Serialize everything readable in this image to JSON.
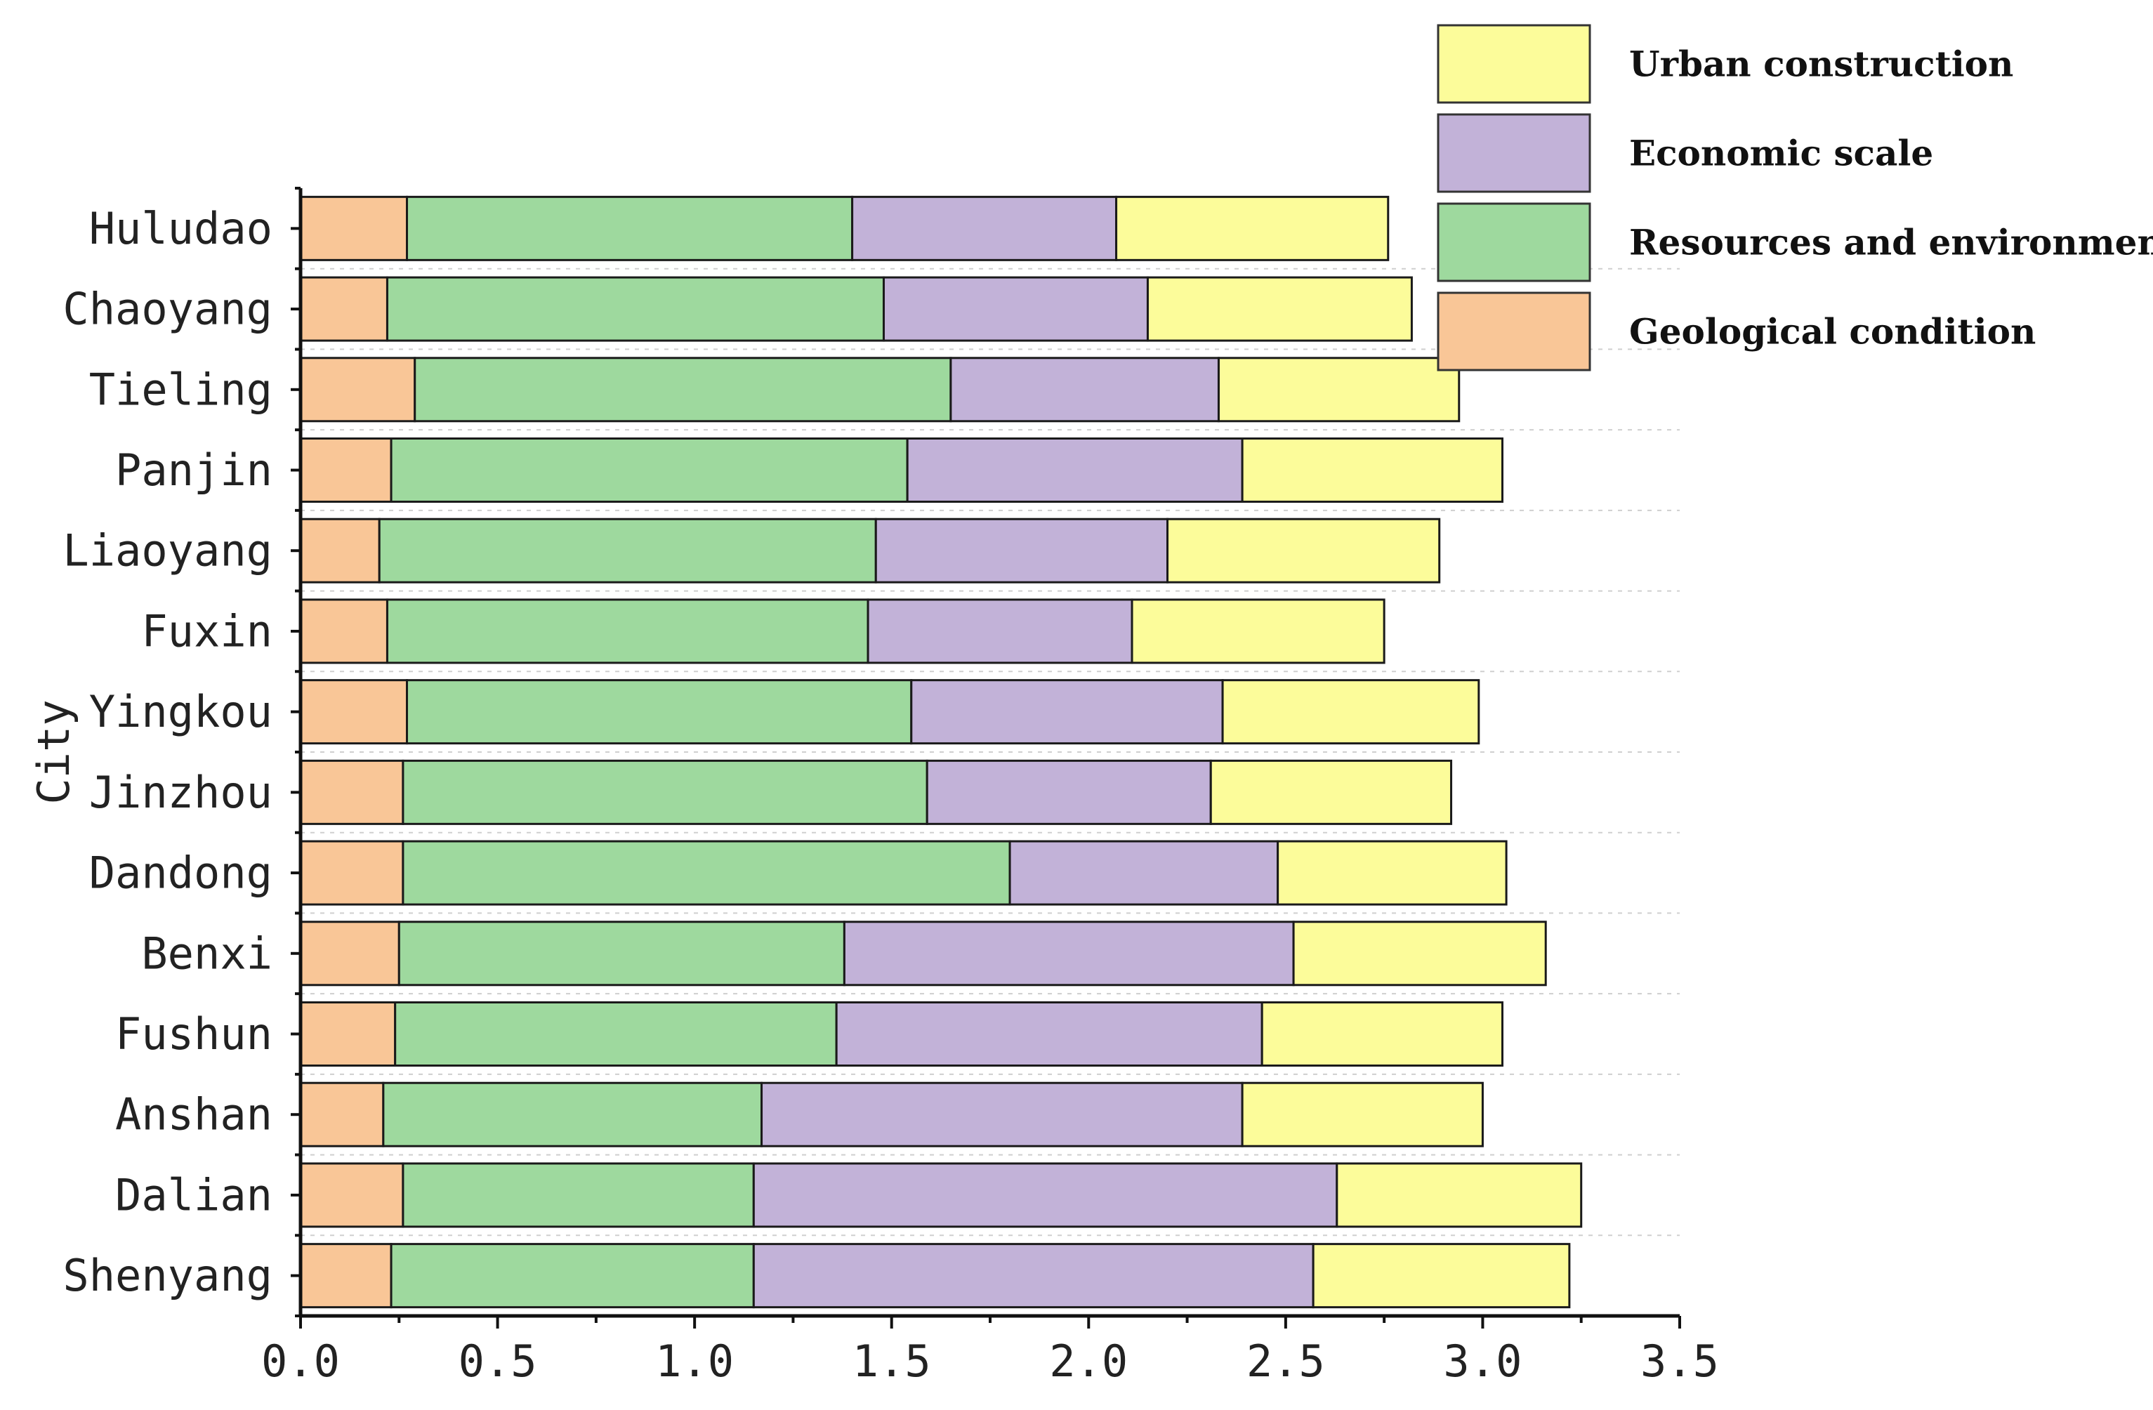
{
  "chart_data": {
    "type": "bar",
    "orientation": "horizontal",
    "stacked": true,
    "title": "",
    "xlabel": "",
    "ylabel": "City",
    "xlim": [
      0,
      3.5
    ],
    "xticks": [
      "0.0",
      "0.5",
      "1.0",
      "1.5",
      "2.0",
      "2.5",
      "3.0",
      "3.5"
    ],
    "grid": true,
    "legend_position": "top-right",
    "categories": [
      "Huludao",
      "Chaoyang",
      "Tieling",
      "Panjin",
      "Liaoyang",
      "Fuxin",
      "Yingkou",
      "Jinzhou",
      "Dandong",
      "Benxi",
      "Fushun",
      "Anshan",
      "Dalian",
      "Shenyang"
    ],
    "series": [
      {
        "name": "Geological condition",
        "color": "#f9c697",
        "values": [
          0.27,
          0.22,
          0.29,
          0.23,
          0.2,
          0.22,
          0.27,
          0.26,
          0.26,
          0.25,
          0.24,
          0.21,
          0.26,
          0.23
        ]
      },
      {
        "name": "Resources and environment",
        "color": "#9ed99e",
        "values": [
          1.13,
          1.26,
          1.36,
          1.31,
          1.26,
          1.22,
          1.28,
          1.33,
          1.54,
          1.13,
          1.12,
          0.96,
          0.89,
          0.92
        ]
      },
      {
        "name": "Economic scale",
        "color": "#c2b2d8",
        "values": [
          0.67,
          0.67,
          0.68,
          0.85,
          0.74,
          0.67,
          0.79,
          0.72,
          0.68,
          1.14,
          1.08,
          1.22,
          1.48,
          1.42
        ]
      },
      {
        "name": "Urban construction",
        "color": "#fcfc9a",
        "values": [
          0.69,
          0.67,
          0.61,
          0.66,
          0.69,
          0.64,
          0.65,
          0.61,
          0.58,
          0.64,
          0.61,
          0.61,
          0.62,
          0.65
        ]
      }
    ],
    "legend_order": [
      "Urban construction",
      "Economic scale",
      "Resources and environment",
      "Geological condition"
    ]
  }
}
